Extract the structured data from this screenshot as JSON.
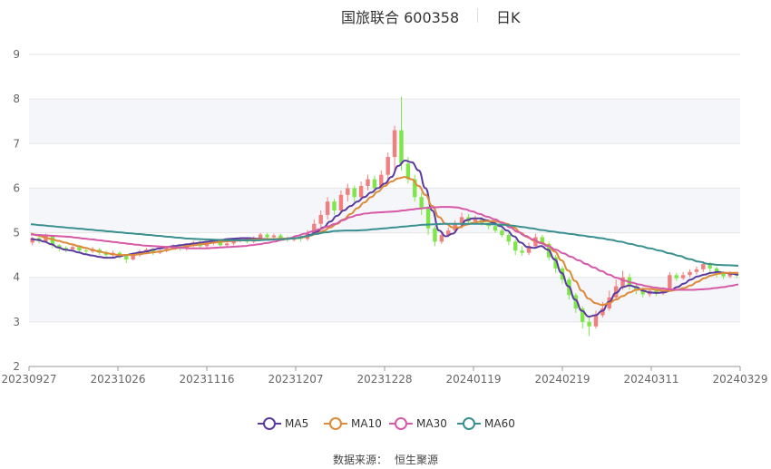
{
  "header": {
    "title": "国旅联合 600358",
    "subtitle": "日K"
  },
  "legend": [
    {
      "label": "MA5",
      "color": "#5b3c9e"
    },
    {
      "label": "MA10",
      "color": "#dd8a3a"
    },
    {
      "label": "MA30",
      "color": "#d65aa8"
    },
    {
      "label": "MA60",
      "color": "#3a8f8f"
    }
  ],
  "source": {
    "label": "数据来源：",
    "value": "恒生聚源"
  },
  "colors": {
    "up": "#f08080",
    "down": "#7fe64a",
    "grid_band": "#f5f6fa",
    "grid_line": "#e6e6e6"
  },
  "chart_data": {
    "type": "candlestick",
    "y_ticks": [
      "2",
      "3",
      "4",
      "5",
      "6",
      "7",
      "8",
      "9"
    ],
    "ylim": [
      2,
      9
    ],
    "x_ticks": [
      "20230927",
      "20231026",
      "20231116",
      "20231207",
      "20231228",
      "20240119",
      "20240219",
      "20240311",
      "20240329"
    ],
    "grid": true,
    "legend_position": "bottom-center",
    "candles": [
      [
        4.78,
        4.88,
        4.72,
        4.91
      ],
      [
        4.88,
        4.81,
        4.76,
        4.95
      ],
      [
        4.81,
        4.92,
        4.78,
        4.98
      ],
      [
        4.92,
        4.72,
        4.66,
        4.95
      ],
      [
        4.72,
        4.66,
        4.58,
        4.75
      ],
      [
        4.66,
        4.63,
        4.56,
        4.7
      ],
      [
        4.63,
        4.68,
        4.6,
        4.74
      ],
      [
        4.68,
        4.6,
        4.55,
        4.72
      ],
      [
        4.6,
        4.58,
        4.52,
        4.64
      ],
      [
        4.58,
        4.62,
        4.55,
        4.68
      ],
      [
        4.62,
        4.55,
        4.5,
        4.66
      ],
      [
        4.55,
        4.5,
        4.45,
        4.6
      ],
      [
        4.5,
        4.55,
        4.46,
        4.6
      ],
      [
        4.55,
        4.48,
        4.42,
        4.58
      ],
      [
        4.48,
        4.4,
        4.32,
        4.52
      ],
      [
        4.4,
        4.5,
        4.38,
        4.56
      ],
      [
        4.5,
        4.58,
        4.46,
        4.62
      ],
      [
        4.58,
        4.62,
        4.52,
        4.66
      ],
      [
        4.62,
        4.55,
        4.5,
        4.66
      ],
      [
        4.55,
        4.6,
        4.52,
        4.66
      ],
      [
        4.6,
        4.66,
        4.56,
        4.7
      ],
      [
        4.66,
        4.7,
        4.62,
        4.74
      ],
      [
        4.7,
        4.64,
        4.6,
        4.74
      ],
      [
        4.64,
        4.72,
        4.6,
        4.76
      ],
      [
        4.72,
        4.78,
        4.68,
        4.82
      ],
      [
        4.78,
        4.7,
        4.66,
        4.82
      ],
      [
        4.7,
        4.76,
        4.66,
        4.8
      ],
      [
        4.76,
        4.8,
        4.72,
        4.86
      ],
      [
        4.8,
        4.72,
        4.68,
        4.84
      ],
      [
        4.72,
        4.76,
        4.68,
        4.8
      ],
      [
        4.76,
        4.82,
        4.72,
        4.86
      ],
      [
        4.82,
        4.86,
        4.78,
        4.9
      ],
      [
        4.86,
        4.8,
        4.76,
        4.9
      ],
      [
        4.8,
        4.88,
        4.76,
        4.92
      ],
      [
        4.88,
        4.96,
        4.84,
        5.0
      ],
      [
        4.96,
        4.9,
        4.86,
        5.0
      ],
      [
        4.9,
        4.94,
        4.86,
        4.98
      ],
      [
        4.94,
        4.88,
        4.82,
        4.98
      ],
      [
        4.88,
        4.84,
        4.8,
        4.92
      ],
      [
        4.84,
        4.9,
        4.8,
        4.94
      ],
      [
        4.9,
        4.86,
        4.8,
        4.94
      ],
      [
        4.86,
        5.0,
        4.82,
        5.06
      ],
      [
        5.0,
        5.2,
        4.96,
        5.3
      ],
      [
        5.2,
        5.4,
        5.1,
        5.5
      ],
      [
        5.4,
        5.7,
        5.3,
        5.8
      ],
      [
        5.7,
        5.5,
        5.4,
        5.76
      ],
      [
        5.5,
        5.85,
        5.45,
        5.95
      ],
      [
        5.85,
        6.0,
        5.7,
        6.1
      ],
      [
        6.0,
        5.8,
        5.7,
        6.06
      ],
      [
        5.8,
        6.05,
        5.75,
        6.15
      ],
      [
        6.05,
        6.2,
        5.95,
        6.3
      ],
      [
        6.2,
        6.0,
        5.9,
        6.28
      ],
      [
        6.0,
        6.3,
        5.96,
        6.4
      ],
      [
        6.3,
        6.7,
        6.2,
        6.8
      ],
      [
        6.7,
        7.3,
        6.4,
        7.4
      ],
      [
        7.3,
        6.55,
        6.4,
        8.05
      ],
      [
        6.55,
        6.2,
        6.1,
        6.7
      ],
      [
        6.2,
        5.8,
        5.7,
        6.3
      ],
      [
        5.8,
        5.55,
        5.4,
        5.9
      ],
      [
        5.55,
        5.1,
        4.95,
        5.6
      ],
      [
        5.1,
        4.8,
        4.7,
        5.15
      ],
      [
        4.8,
        4.95,
        4.75,
        5.02
      ],
      [
        4.95,
        5.05,
        4.9,
        5.12
      ],
      [
        5.05,
        5.2,
        5.0,
        5.28
      ],
      [
        5.2,
        5.35,
        5.1,
        5.45
      ],
      [
        5.35,
        5.25,
        5.18,
        5.42
      ],
      [
        5.25,
        5.3,
        5.2,
        5.38
      ],
      [
        5.3,
        5.22,
        5.16,
        5.36
      ],
      [
        5.22,
        5.15,
        5.08,
        5.28
      ],
      [
        5.15,
        5.05,
        5.0,
        5.2
      ],
      [
        5.05,
        4.95,
        4.9,
        5.1
      ],
      [
        4.95,
        4.8,
        4.72,
        5.0
      ],
      [
        4.8,
        4.6,
        4.5,
        4.85
      ],
      [
        4.6,
        4.55,
        4.48,
        4.7
      ],
      [
        4.55,
        4.7,
        4.5,
        4.78
      ],
      [
        4.7,
        4.9,
        4.66,
        4.98
      ],
      [
        4.9,
        4.75,
        4.7,
        4.95
      ],
      [
        4.75,
        4.45,
        4.38,
        4.8
      ],
      [
        4.45,
        4.2,
        4.1,
        4.5
      ],
      [
        4.2,
        3.95,
        3.85,
        4.25
      ],
      [
        3.95,
        3.6,
        3.5,
        4.0
      ],
      [
        3.6,
        3.3,
        3.2,
        3.65
      ],
      [
        3.3,
        3.0,
        2.85,
        3.35
      ],
      [
        3.0,
        2.9,
        2.68,
        3.1
      ],
      [
        2.9,
        3.15,
        2.85,
        3.25
      ],
      [
        3.15,
        3.3,
        3.1,
        3.45
      ],
      [
        3.3,
        3.55,
        3.25,
        3.7
      ],
      [
        3.55,
        3.8,
        3.5,
        3.95
      ],
      [
        3.8,
        4.0,
        3.72,
        4.15
      ],
      [
        4.0,
        3.8,
        3.72,
        4.08
      ],
      [
        3.8,
        3.7,
        3.62,
        3.86
      ],
      [
        3.7,
        3.62,
        3.55,
        3.78
      ],
      [
        3.62,
        3.7,
        3.56,
        3.76
      ],
      [
        3.7,
        3.64,
        3.58,
        3.76
      ],
      [
        3.64,
        3.72,
        3.6,
        3.78
      ],
      [
        3.72,
        4.05,
        3.7,
        4.12
      ],
      [
        4.05,
        3.98,
        3.92,
        4.1
      ],
      [
        3.98,
        4.05,
        3.94,
        4.12
      ],
      [
        4.05,
        4.12,
        4.0,
        4.18
      ],
      [
        4.12,
        4.18,
        4.06,
        4.24
      ],
      [
        4.18,
        4.3,
        4.12,
        4.36
      ],
      [
        4.3,
        4.2,
        4.1,
        4.34
      ],
      [
        4.2,
        4.08,
        4.0,
        4.24
      ],
      [
        4.08,
        4.02,
        3.96,
        4.14
      ],
      [
        4.02,
        4.08,
        3.98,
        4.14
      ],
      [
        4.08,
        4.04,
        3.98,
        4.12
      ]
    ],
    "series": [
      {
        "name": "MA5",
        "values": [
          4.86,
          4.84,
          4.8,
          4.74,
          4.67,
          4.62,
          4.6,
          4.56,
          4.52,
          4.49,
          4.46,
          4.44,
          4.44,
          4.47,
          4.5,
          4.53,
          4.56,
          4.58,
          4.62,
          4.65,
          4.68,
          4.7,
          4.72,
          4.74,
          4.76,
          4.78,
          4.8,
          4.82,
          4.84,
          4.86,
          4.87,
          4.88,
          4.88,
          4.87,
          4.86,
          4.86,
          4.86,
          4.86,
          4.87,
          4.88,
          4.9,
          4.95,
          5.02,
          5.12,
          5.25,
          5.38,
          5.5,
          5.6,
          5.7,
          5.8,
          5.9,
          6.0,
          6.1,
          6.25,
          6.5,
          6.62,
          6.58,
          6.4,
          6.0,
          5.5,
          5.05,
          4.92,
          4.98,
          5.12,
          5.28,
          5.32,
          5.32,
          5.28,
          5.22,
          5.15,
          5.05,
          4.92,
          4.78,
          4.68,
          4.66,
          4.7,
          4.62,
          4.4,
          4.1,
          3.8,
          3.5,
          3.25,
          3.12,
          3.15,
          3.25,
          3.45,
          3.65,
          3.78,
          3.82,
          3.78,
          3.7,
          3.66,
          3.65,
          3.66,
          3.7,
          3.78,
          3.86,
          3.95,
          4.02,
          4.06,
          4.1,
          4.12,
          4.1,
          4.08,
          4.06
        ]
      },
      {
        "name": "MA10",
        "values": [
          4.98,
          4.94,
          4.9,
          4.86,
          4.82,
          4.78,
          4.74,
          4.7,
          4.66,
          4.62,
          4.58,
          4.55,
          4.52,
          4.5,
          4.5,
          4.5,
          4.52,
          4.54,
          4.56,
          4.58,
          4.61,
          4.64,
          4.67,
          4.7,
          4.72,
          4.74,
          4.76,
          4.78,
          4.8,
          4.81,
          4.82,
          4.83,
          4.84,
          4.85,
          4.85,
          4.86,
          4.86,
          4.87,
          4.87,
          4.88,
          4.9,
          4.93,
          4.98,
          5.04,
          5.12,
          5.2,
          5.3,
          5.42,
          5.55,
          5.68,
          5.8,
          5.92,
          6.05,
          6.15,
          6.22,
          6.25,
          6.2,
          6.05,
          5.85,
          5.6,
          5.35,
          5.2,
          5.12,
          5.12,
          5.18,
          5.22,
          5.25,
          5.26,
          5.26,
          5.24,
          5.2,
          5.12,
          5.0,
          4.9,
          4.82,
          4.78,
          4.72,
          4.58,
          4.38,
          4.15,
          3.92,
          3.7,
          3.52,
          3.42,
          3.38,
          3.42,
          3.5,
          3.58,
          3.66,
          3.72,
          3.74,
          3.74,
          3.72,
          3.7,
          3.7,
          3.72,
          3.76,
          3.82,
          3.9,
          3.98,
          4.04,
          4.08,
          4.1,
          4.1,
          4.1
        ]
      },
      {
        "name": "MA30",
        "values": [
          4.96,
          4.95,
          4.94,
          4.93,
          4.92,
          4.91,
          4.89,
          4.87,
          4.85,
          4.83,
          4.81,
          4.79,
          4.77,
          4.75,
          4.73,
          4.71,
          4.7,
          4.69,
          4.68,
          4.67,
          4.66,
          4.65,
          4.65,
          4.65,
          4.66,
          4.67,
          4.68,
          4.69,
          4.7,
          4.72,
          4.74,
          4.77,
          4.8,
          4.84,
          4.88,
          4.93,
          4.98,
          5.03,
          5.08,
          5.14,
          5.2,
          5.28,
          5.35,
          5.4,
          5.43,
          5.45,
          5.46,
          5.47,
          5.48,
          5.5,
          5.52,
          5.54,
          5.56,
          5.57,
          5.58,
          5.58,
          5.57,
          5.53,
          5.48,
          5.42,
          5.36,
          5.3,
          5.22,
          5.12,
          5.02,
          4.93,
          4.85,
          4.77,
          4.7,
          4.62,
          4.54,
          4.46,
          4.38,
          4.3,
          4.22,
          4.14,
          4.06,
          3.99,
          3.93,
          3.88,
          3.84,
          3.8,
          3.77,
          3.75,
          3.73,
          3.72,
          3.72,
          3.72,
          3.73,
          3.74,
          3.76,
          3.78,
          3.81,
          3.84
        ]
      },
      {
        "name": "MA60",
        "values": [
          5.19,
          5.17,
          5.15,
          5.13,
          5.11,
          5.09,
          5.07,
          5.05,
          5.03,
          5.01,
          4.99,
          4.97,
          4.95,
          4.93,
          4.91,
          4.89,
          4.87,
          4.86,
          4.85,
          4.84,
          4.83,
          4.83,
          4.83,
          4.83,
          4.84,
          4.85,
          4.86,
          4.88,
          4.92,
          4.97,
          5.01,
          5.04,
          5.05,
          5.05,
          5.06,
          5.08,
          5.1,
          5.12,
          5.14,
          5.16,
          5.18,
          5.19,
          5.2,
          5.2,
          5.2,
          5.2,
          5.2,
          5.19,
          5.18,
          5.16,
          5.13,
          5.1,
          5.06,
          5.03,
          5.0,
          4.97,
          4.94,
          4.91,
          4.88,
          4.84,
          4.8,
          4.75,
          4.7,
          4.65,
          4.6,
          4.54,
          4.48,
          4.41,
          4.35,
          4.3,
          4.28,
          4.27,
          4.26
        ]
      }
    ]
  }
}
